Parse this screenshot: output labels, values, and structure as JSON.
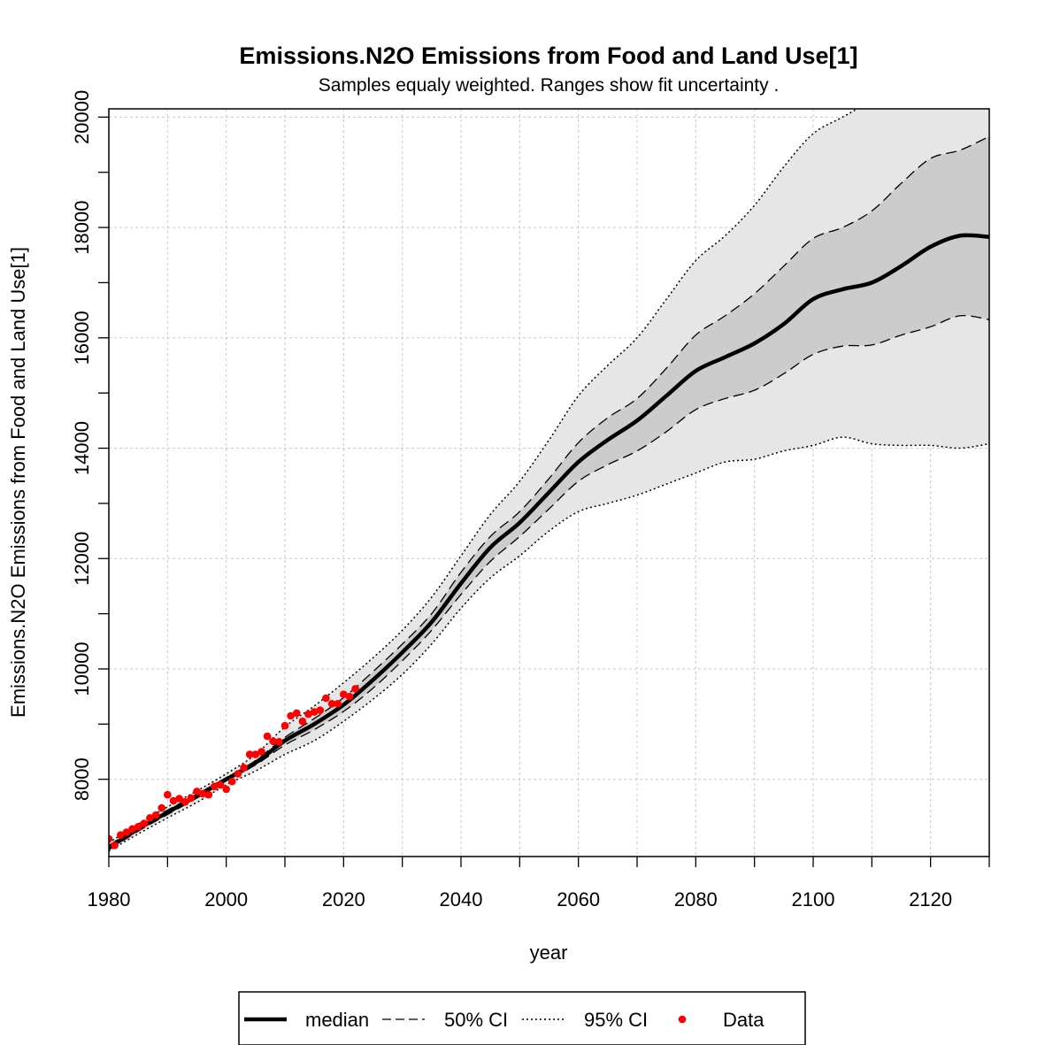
{
  "chart_data": {
    "type": "line",
    "title": "Emissions.N2O Emissions from Food and Land Use[1]",
    "subtitle": "Samples equaly weighted. Ranges show  fit uncertainty .",
    "xlabel": "year",
    "ylabel": "Emissions.N2O Emissions from Food and Land Use[1]",
    "xlim": [
      1980,
      2130
    ],
    "ylim": [
      6600,
      20150
    ],
    "x_ticks": [
      "1980",
      "2000",
      "2020",
      "2040",
      "2060",
      "2080",
      "2100",
      "2120"
    ],
    "y_ticks": [
      "8000",
      "10000",
      "12000",
      "14000",
      "16000",
      "18000",
      "20000"
    ],
    "grid": true,
    "legend_position": "bottom",
    "colors": {
      "median": "#000000",
      "band50": "#cccccc",
      "band95": "#e6e6e6",
      "data": "#ff0000",
      "grid": "#c8c8c8"
    },
    "series": [
      {
        "name": "median",
        "style": "solid",
        "points": [
          [
            1980,
            6760
          ],
          [
            1985,
            7100
          ],
          [
            1990,
            7400
          ],
          [
            1995,
            7700
          ],
          [
            2000,
            8000
          ],
          [
            2005,
            8300
          ],
          [
            2010,
            8700
          ],
          [
            2015,
            9000
          ],
          [
            2020,
            9350
          ],
          [
            2025,
            9800
          ],
          [
            2030,
            10300
          ],
          [
            2035,
            10850
          ],
          [
            2040,
            11550
          ],
          [
            2045,
            12200
          ],
          [
            2050,
            12650
          ],
          [
            2055,
            13200
          ],
          [
            2060,
            13750
          ],
          [
            2065,
            14150
          ],
          [
            2070,
            14500
          ],
          [
            2075,
            14950
          ],
          [
            2080,
            15400
          ],
          [
            2085,
            15650
          ],
          [
            2090,
            15900
          ],
          [
            2095,
            16250
          ],
          [
            2100,
            16700
          ],
          [
            2105,
            16880
          ],
          [
            2110,
            17000
          ],
          [
            2115,
            17300
          ],
          [
            2120,
            17650
          ],
          [
            2125,
            17850
          ],
          [
            2130,
            17830
          ]
        ]
      },
      {
        "name": "50% CI upper",
        "style": "dashed",
        "points": [
          [
            1980,
            6800
          ],
          [
            1985,
            7140
          ],
          [
            1990,
            7440
          ],
          [
            1995,
            7730
          ],
          [
            2000,
            8030
          ],
          [
            2005,
            8340
          ],
          [
            2010,
            8760
          ],
          [
            2015,
            9100
          ],
          [
            2020,
            9480
          ],
          [
            2025,
            9950
          ],
          [
            2030,
            10450
          ],
          [
            2035,
            11000
          ],
          [
            2040,
            11750
          ],
          [
            2045,
            12400
          ],
          [
            2050,
            12850
          ],
          [
            2055,
            13450
          ],
          [
            2060,
            14100
          ],
          [
            2065,
            14550
          ],
          [
            2070,
            14900
          ],
          [
            2075,
            15450
          ],
          [
            2080,
            16050
          ],
          [
            2085,
            16400
          ],
          [
            2090,
            16800
          ],
          [
            2095,
            17300
          ],
          [
            2100,
            17800
          ],
          [
            2105,
            18000
          ],
          [
            2110,
            18300
          ],
          [
            2115,
            18800
          ],
          [
            2120,
            19250
          ],
          [
            2125,
            19400
          ],
          [
            2130,
            19650
          ]
        ]
      },
      {
        "name": "50% CI lower",
        "style": "dashed",
        "points": [
          [
            1980,
            6720
          ],
          [
            1985,
            7060
          ],
          [
            1990,
            7360
          ],
          [
            1995,
            7660
          ],
          [
            2000,
            7970
          ],
          [
            2005,
            8260
          ],
          [
            2010,
            8620
          ],
          [
            2015,
            8900
          ],
          [
            2020,
            9230
          ],
          [
            2025,
            9650
          ],
          [
            2030,
            10150
          ],
          [
            2035,
            10700
          ],
          [
            2040,
            11350
          ],
          [
            2045,
            11950
          ],
          [
            2050,
            12400
          ],
          [
            2055,
            12900
          ],
          [
            2060,
            13400
          ],
          [
            2065,
            13700
          ],
          [
            2070,
            13950
          ],
          [
            2075,
            14300
          ],
          [
            2080,
            14700
          ],
          [
            2085,
            14900
          ],
          [
            2090,
            15050
          ],
          [
            2095,
            15350
          ],
          [
            2100,
            15700
          ],
          [
            2105,
            15850
          ],
          [
            2110,
            15870
          ],
          [
            2115,
            16050
          ],
          [
            2120,
            16200
          ],
          [
            2125,
            16400
          ],
          [
            2130,
            16330
          ]
        ]
      },
      {
        "name": "95% CI upper",
        "style": "dotted",
        "points": [
          [
            1980,
            6850
          ],
          [
            1985,
            7190
          ],
          [
            1990,
            7500
          ],
          [
            1995,
            7790
          ],
          [
            2000,
            8100
          ],
          [
            2005,
            8450
          ],
          [
            2010,
            8950
          ],
          [
            2015,
            9330
          ],
          [
            2020,
            9750
          ],
          [
            2025,
            10200
          ],
          [
            2030,
            10700
          ],
          [
            2035,
            11300
          ],
          [
            2040,
            12050
          ],
          [
            2045,
            12800
          ],
          [
            2050,
            13400
          ],
          [
            2055,
            14150
          ],
          [
            2060,
            14950
          ],
          [
            2065,
            15500
          ],
          [
            2070,
            16000
          ],
          [
            2075,
            16700
          ],
          [
            2080,
            17400
          ],
          [
            2085,
            17850
          ],
          [
            2090,
            18400
          ],
          [
            2095,
            19100
          ],
          [
            2100,
            19700
          ],
          [
            2105,
            20000
          ],
          [
            2110,
            20300
          ],
          [
            2115,
            20600
          ]
        ]
      },
      {
        "name": "95% CI lower",
        "style": "dotted",
        "points": [
          [
            1980,
            6700
          ],
          [
            1985,
            7010
          ],
          [
            1990,
            7300
          ],
          [
            1995,
            7580
          ],
          [
            2000,
            7900
          ],
          [
            2005,
            8150
          ],
          [
            2010,
            8450
          ],
          [
            2015,
            8700
          ],
          [
            2020,
            9050
          ],
          [
            2025,
            9450
          ],
          [
            2030,
            9900
          ],
          [
            2035,
            10450
          ],
          [
            2040,
            11100
          ],
          [
            2045,
            11650
          ],
          [
            2050,
            12050
          ],
          [
            2055,
            12500
          ],
          [
            2060,
            12850
          ],
          [
            2065,
            13000
          ],
          [
            2070,
            13150
          ],
          [
            2075,
            13350
          ],
          [
            2080,
            13550
          ],
          [
            2085,
            13750
          ],
          [
            2090,
            13800
          ],
          [
            2095,
            13950
          ],
          [
            2100,
            14050
          ],
          [
            2105,
            14200
          ],
          [
            2110,
            14080
          ],
          [
            2115,
            14050
          ],
          [
            2120,
            14050
          ],
          [
            2125,
            14000
          ],
          [
            2130,
            14080
          ]
        ]
      }
    ],
    "data_points": [
      [
        1980,
        6920
      ],
      [
        1981,
        6800
      ],
      [
        1982,
        6990
      ],
      [
        1983,
        7040
      ],
      [
        1984,
        7100
      ],
      [
        1985,
        7140
      ],
      [
        1986,
        7200
      ],
      [
        1987,
        7300
      ],
      [
        1988,
        7350
      ],
      [
        1989,
        7480
      ],
      [
        1990,
        7720
      ],
      [
        1991,
        7610
      ],
      [
        1992,
        7650
      ],
      [
        1993,
        7590
      ],
      [
        1994,
        7660
      ],
      [
        1995,
        7780
      ],
      [
        1996,
        7740
      ],
      [
        1997,
        7720
      ],
      [
        1998,
        7870
      ],
      [
        1999,
        7900
      ],
      [
        2000,
        7820
      ],
      [
        2001,
        7960
      ],
      [
        2002,
        8100
      ],
      [
        2003,
        8210
      ],
      [
        2004,
        8450
      ],
      [
        2005,
        8450
      ],
      [
        2006,
        8500
      ],
      [
        2007,
        8780
      ],
      [
        2008,
        8690
      ],
      [
        2009,
        8680
      ],
      [
        2010,
        8970
      ],
      [
        2011,
        9150
      ],
      [
        2012,
        9200
      ],
      [
        2013,
        9050
      ],
      [
        2014,
        9180
      ],
      [
        2015,
        9220
      ],
      [
        2016,
        9250
      ],
      [
        2017,
        9470
      ],
      [
        2018,
        9370
      ],
      [
        2019,
        9370
      ],
      [
        2020,
        9540
      ],
      [
        2021,
        9500
      ],
      [
        2022,
        9640
      ]
    ],
    "legend": [
      {
        "label": "median",
        "style": "solid"
      },
      {
        "label": "50% CI",
        "style": "dashed"
      },
      {
        "label": "95% CI",
        "style": "dotted"
      },
      {
        "label": "Data",
        "style": "point"
      }
    ]
  }
}
